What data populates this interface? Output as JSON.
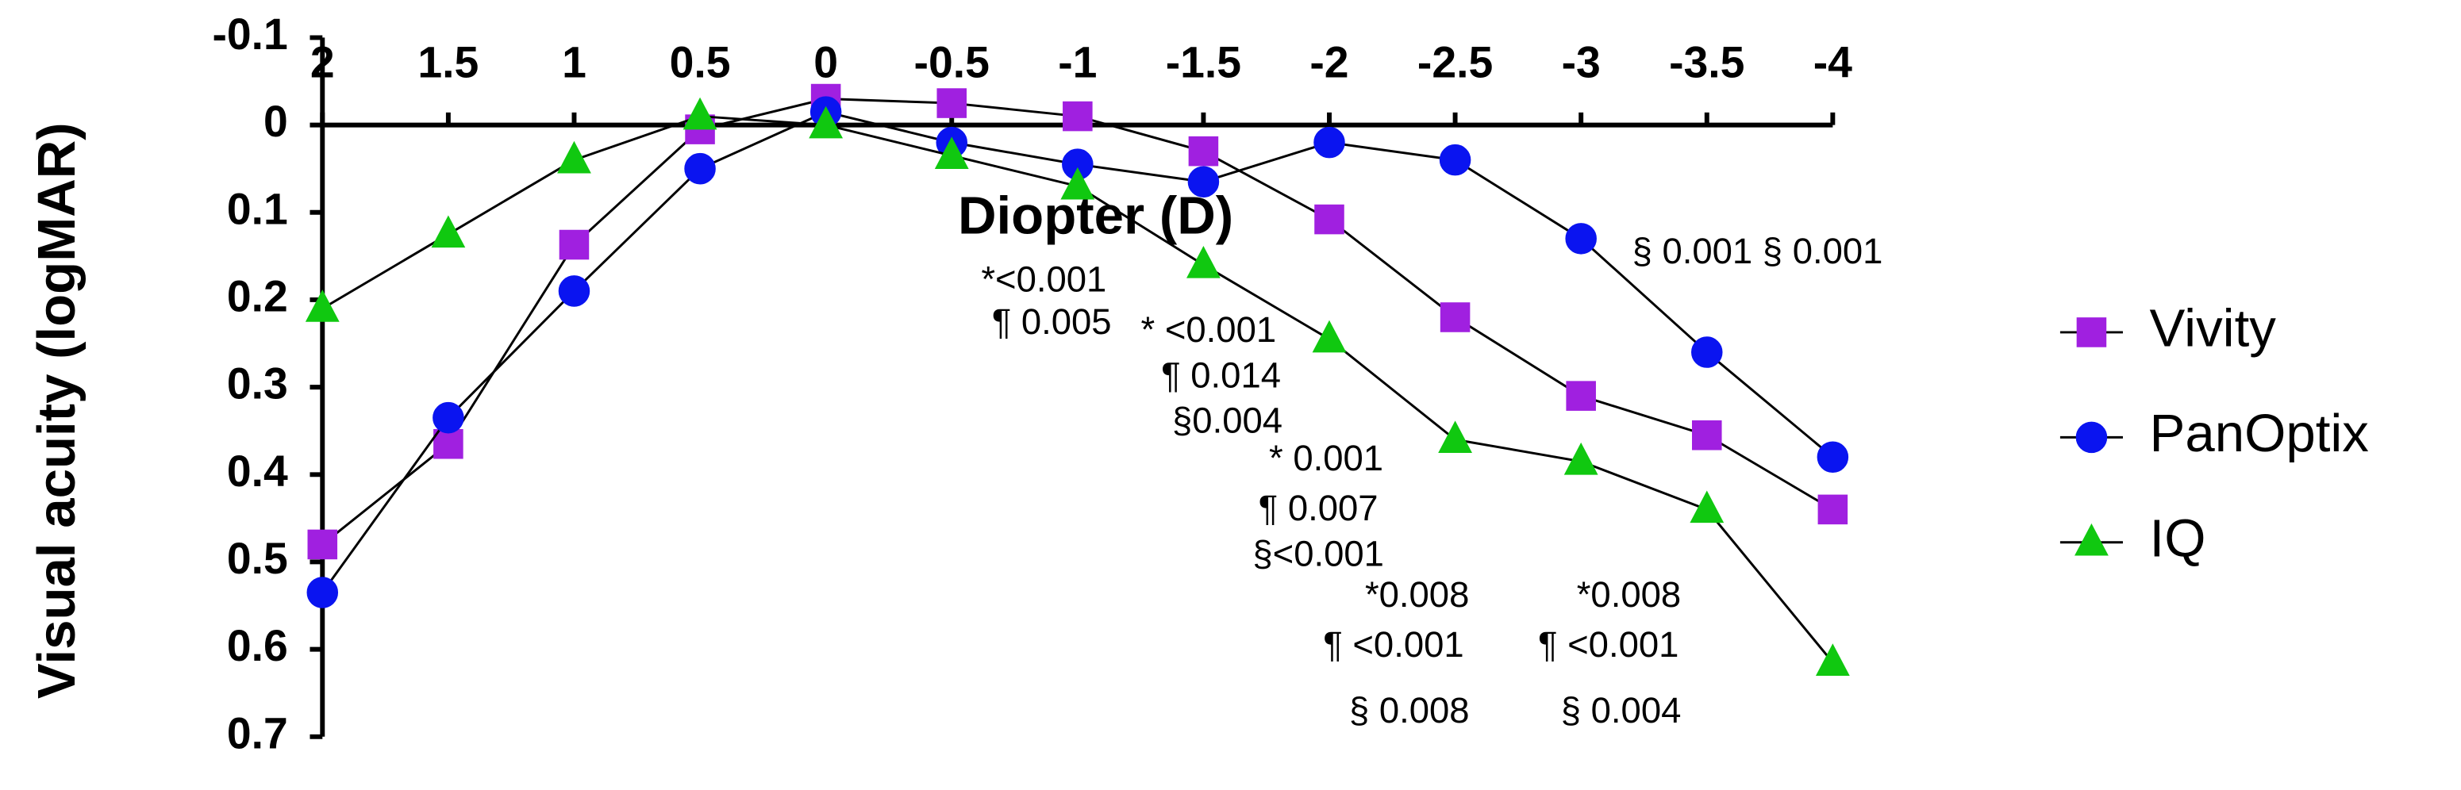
{
  "chart_data": {
    "type": "line",
    "x_label": "Diopter (D)",
    "y_label": "Visual acuity (logMAR)",
    "x": [
      2,
      1.5,
      1,
      0.5,
      0,
      -0.5,
      -1,
      -1.5,
      -2,
      -2.5,
      -3,
      -3.5,
      -4
    ],
    "xlim": [
      2,
      -4
    ],
    "xticks": [
      2,
      1.5,
      1,
      0.5,
      0,
      -0.5,
      -1,
      -1.5,
      -2,
      -2.5,
      -3,
      -3.5,
      -4
    ],
    "ylim": [
      -0.1,
      0.7
    ],
    "yticks": [
      -0.1,
      0,
      0.1,
      0.2,
      0.3,
      0.4,
      0.5,
      0.6,
      0.7
    ],
    "y_inverted": true,
    "series": [
      {
        "name": "Vivity",
        "color": "#a020e0",
        "marker": "square",
        "values": [
          0.48,
          0.365,
          0.137,
          0.005,
          -0.03,
          -0.025,
          -0.01,
          0.03,
          0.108,
          0.22,
          0.31,
          0.355,
          0.44
        ]
      },
      {
        "name": "PanOptix",
        "color": "#0a14f0",
        "marker": "circle",
        "values": [
          0.535,
          0.335,
          0.19,
          0.05,
          -0.015,
          0.02,
          0.045,
          0.065,
          0.02,
          0.04,
          0.13,
          0.26,
          0.38
        ]
      },
      {
        "name": "IQ",
        "color": "#10c810",
        "marker": "triangle",
        "values": [
          0.21,
          0.125,
          0.04,
          -0.01,
          0.0,
          0.035,
          0.07,
          0.16,
          0.245,
          0.36,
          0.385,
          0.44,
          0.615
        ]
      }
    ],
    "annotations": [
      "*<0.001",
      "¶ 0.005",
      "* <0.001",
      "¶ 0.014",
      "§0.004",
      "* 0.001",
      "¶  0.007",
      "§<0.001",
      "*0.008",
      "¶ <0.001",
      "§ 0.008",
      "*0.008",
      "¶ <0.001",
      "§ 0.004",
      "§ 0.001 § 0.001"
    ]
  }
}
